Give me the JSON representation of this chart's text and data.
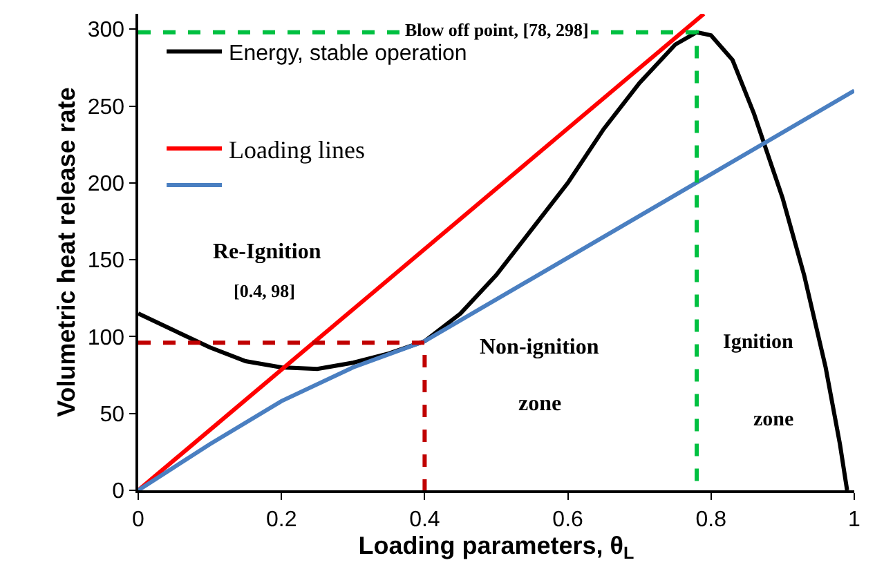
{
  "chart_data": {
    "type": "line",
    "xlabel": "Loading parameters, θ$_{L}$",
    "ylabel": "Volumetric heat release rate",
    "xlim": [
      0,
      1
    ],
    "xticks": [
      0,
      0.2,
      0.4,
      0.6,
      0.8,
      1
    ],
    "ylim": [
      0,
      310
    ],
    "yticks": [
      0,
      50,
      100,
      150,
      200,
      250,
      300
    ],
    "legend": "top left",
    "line_style": "solid",
    "marker": "none",
    "series": [
      {
        "name": "Energy, stable operation",
        "color": "#000000",
        "x": [
          0,
          0.05,
          0.1,
          0.15,
          0.2,
          0.25,
          0.3,
          0.35,
          0.4,
          0.45,
          0.5,
          0.55,
          0.6,
          0.65,
          0.7,
          0.75,
          0.78,
          0.8,
          0.83,
          0.86,
          0.9,
          0.93,
          0.96,
          0.98,
          0.99
        ],
        "values": [
          115,
          104,
          93,
          84,
          80,
          79,
          83,
          89,
          97,
          115,
          140,
          170,
          200,
          235,
          265,
          290,
          298,
          296,
          280,
          245,
          190,
          140,
          80,
          30,
          0
        ]
      },
      {
        "name": "Loading lines",
        "color": "#ff0000",
        "x": [
          0,
          0.79
        ],
        "values": [
          0,
          310
        ]
      },
      {
        "color": "#4a7fc1",
        "x": [
          0,
          0.1,
          0.2,
          0.3,
          0.4,
          1
        ],
        "values": [
          0,
          30,
          58,
          80,
          97,
          260
        ]
      },
      {
        "color": "#c00000",
        "line_style": "dashed",
        "x": [
          0,
          0.4,
          0.4
        ],
        "values": [
          96,
          96,
          0
        ]
      },
      {
        "color": "#00c040",
        "line_style": "dashed",
        "x": [
          0,
          0.78,
          0.78
        ],
        "values": [
          298,
          298,
          0
        ]
      }
    ],
    "annotations": [
      "Blow off point, [78, 298]",
      "Re-Ignition",
      "[0.4, 98]",
      "Non-ignition",
      "zone",
      "Ignition",
      "zone"
    ]
  }
}
